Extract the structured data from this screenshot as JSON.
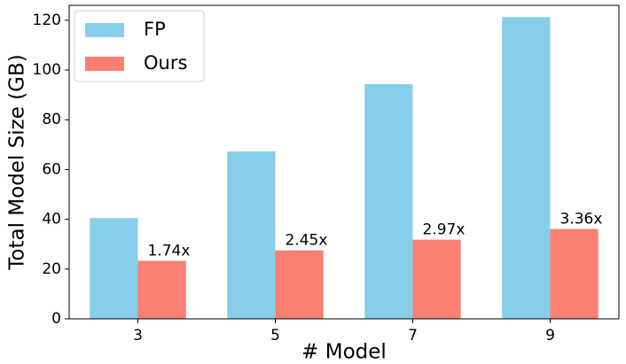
{
  "chart_data": {
    "type": "bar",
    "x_label": "# Model",
    "y_label": "Total Model Size (GB)",
    "categories": [
      "3",
      "5",
      "7",
      "9"
    ],
    "series": [
      {
        "name": "FP",
        "color": "#87ceeb",
        "values": [
          40.5,
          67.3,
          94.3,
          121.3
        ]
      },
      {
        "name": "Ours",
        "color": "#fa8072",
        "values": [
          23.3,
          27.5,
          31.8,
          36.1
        ]
      }
    ],
    "annotations": [
      "1.74x",
      "2.45x",
      "2.97x",
      "3.36x"
    ],
    "ylim": [
      0,
      126
    ],
    "yticks": [
      0,
      20,
      40,
      60,
      80,
      100,
      120
    ],
    "legend": "upper left"
  }
}
